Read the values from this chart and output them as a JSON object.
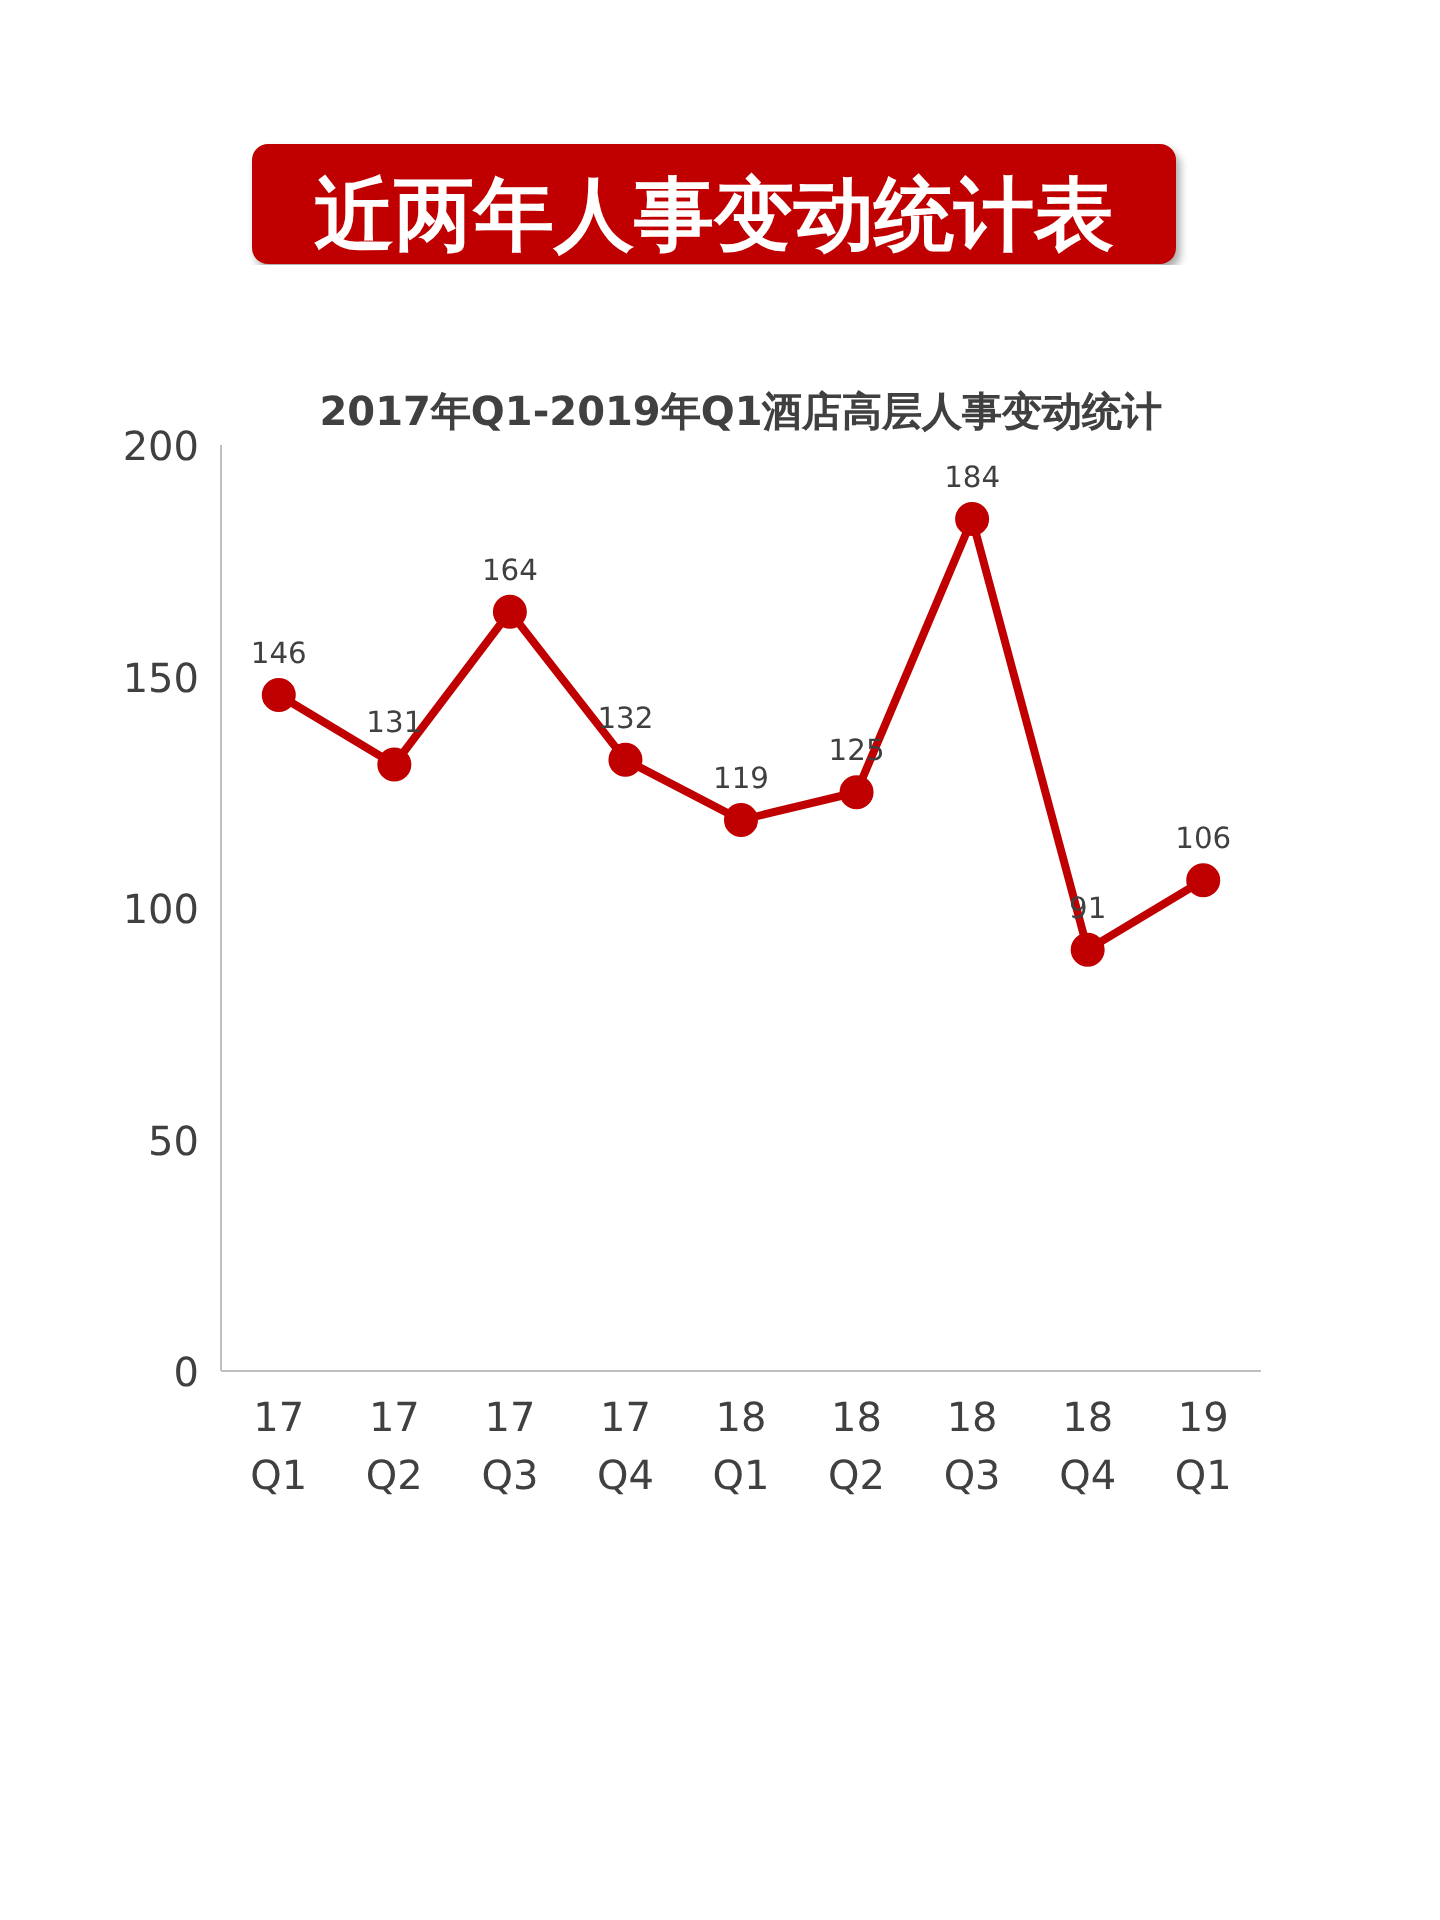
{
  "chart_data": {
    "type": "line",
    "title": "近两年人事变动统计表",
    "subtitle": "2017年Q1-2019年Q1酒店高层人事变动统计",
    "categories": [
      "17 Q1",
      "17 Q2",
      "17 Q3",
      "17 Q4",
      "18 Q1",
      "18 Q2",
      "18 Q3",
      "18 Q4",
      "19 Q1"
    ],
    "series": [
      {
        "color": "#c00000",
        "values": [
          146,
          131,
          164,
          132,
          119,
          125,
          184,
          91,
          106
        ]
      }
    ],
    "ylim": [
      0,
      200
    ],
    "yticks": [
      0,
      50,
      100,
      150,
      200
    ],
    "grid": false,
    "marker": "circle",
    "line_style": "solid",
    "data_labels": true
  }
}
